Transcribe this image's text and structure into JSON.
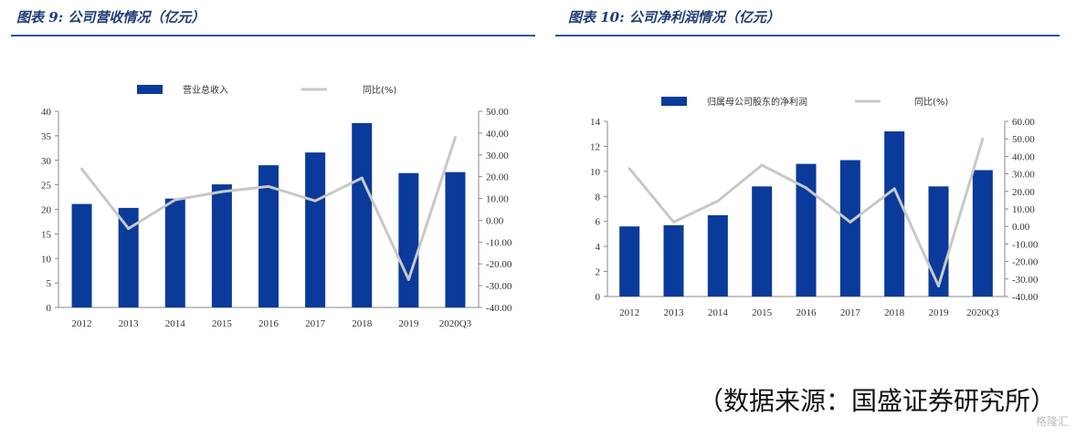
{
  "source_note": "（数据来源：国盛证券研究所）",
  "watermark": "格隆汇",
  "chart_data": [
    {
      "type": "bar",
      "title": "图表 9:  公司营收情况（亿元）",
      "categories": [
        "2012",
        "2013",
        "2014",
        "2015",
        "2016",
        "2017",
        "2018",
        "2019",
        "2020Q3"
      ],
      "series": [
        {
          "name": "营业总收入",
          "kind": "bar",
          "axis": "left",
          "color": "#0a3a9a",
          "values": [
            21.1,
            20.3,
            22.2,
            25.1,
            29.0,
            31.6,
            37.6,
            27.4,
            27.6
          ]
        },
        {
          "name": "同比(%)",
          "kind": "line",
          "axis": "right",
          "color": "#c8c8c8",
          "values": [
            23.5,
            -3.8,
            9.4,
            13.1,
            15.5,
            8.9,
            19.4,
            -27.2,
            38.0
          ]
        }
      ],
      "ylim_left": [
        0,
        40
      ],
      "yticks_left": [
        "0",
        "5",
        "10",
        "15",
        "20",
        "25",
        "30",
        "35",
        "40"
      ],
      "ylim_right": [
        -40,
        50
      ],
      "yticks_right": [
        "-40.00",
        "-30.00",
        "-20.00",
        "-10.00",
        "0.00",
        "10.00",
        "20.00",
        "30.00",
        "40.00",
        "50.00"
      ],
      "legend_position": "top"
    },
    {
      "type": "bar",
      "title": "图表 10:  公司净利润情况（亿元）",
      "categories": [
        "2012",
        "2013",
        "2014",
        "2015",
        "2016",
        "2017",
        "2018",
        "2019",
        "2020Q3"
      ],
      "series": [
        {
          "name": "归属母公司股东的净利润",
          "kind": "bar",
          "axis": "left",
          "color": "#0a3a9a",
          "values": [
            5.6,
            5.7,
            6.5,
            8.8,
            10.6,
            10.9,
            13.2,
            8.8,
            10.1
          ]
        },
        {
          "name": "同比(%)",
          "kind": "line",
          "axis": "right",
          "color": "#c8c8c8",
          "values": [
            33.0,
            2.5,
            14.5,
            35.0,
            22.0,
            2.5,
            21.5,
            -34.0,
            50.0
          ]
        }
      ],
      "ylim_left": [
        0,
        14
      ],
      "yticks_left": [
        "0",
        "2",
        "4",
        "6",
        "8",
        "10",
        "12",
        "14"
      ],
      "ylim_right": [
        -40,
        60
      ],
      "yticks_right": [
        "-40.00",
        "-30.00",
        "-20.00",
        "-10.00",
        "0.00",
        "10.00",
        "20.00",
        "30.00",
        "40.00",
        "50.00",
        "60.00"
      ],
      "legend_position": "top"
    }
  ]
}
